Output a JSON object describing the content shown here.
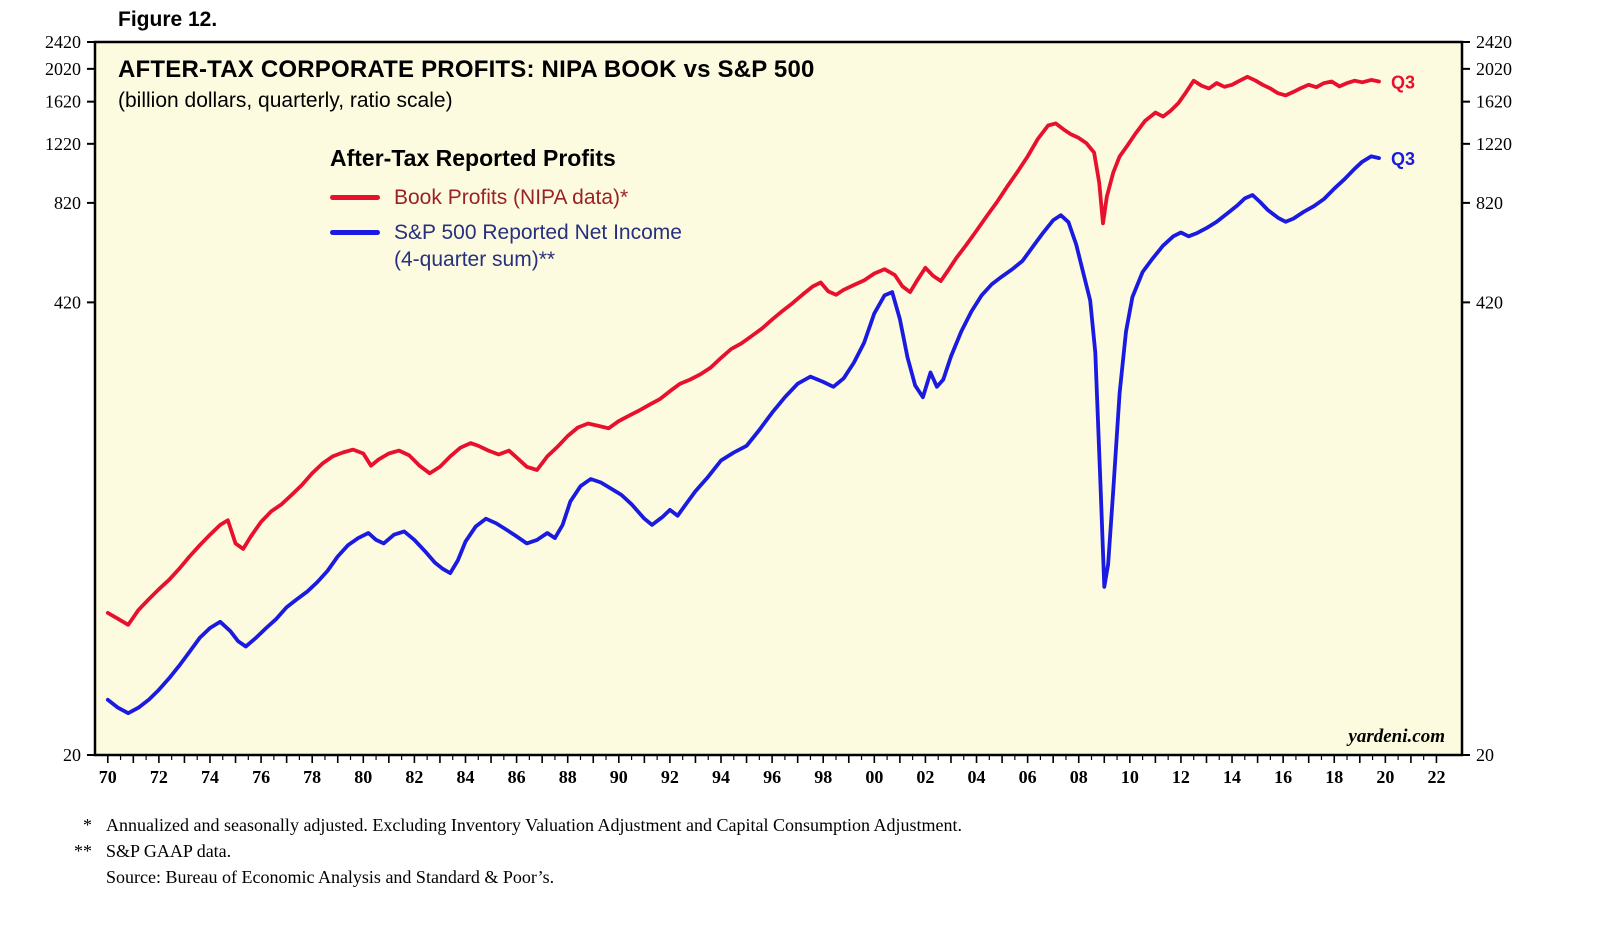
{
  "figure": {
    "label": "Figure 12."
  },
  "chart": {
    "title": "AFTER-TAX CORPORATE PROFITS: NIPA BOOK vs S&P 500",
    "subtitle": "(billion dollars, quarterly, ratio scale)",
    "legend": {
      "heading": "After-Tax Reported Profits",
      "items": [
        {
          "label": "Book Profits (NIPA data)*",
          "label2": "",
          "text_color": "#9a2227"
        },
        {
          "label": "S&P 500 Reported Net Income",
          "label2": "(4-quarter sum)**",
          "text_color": "#27307e"
        }
      ]
    },
    "end_labels": [
      {
        "text": "Q3",
        "series": "book-profits"
      },
      {
        "text": "Q3",
        "series": "sp500-net-income"
      }
    ],
    "watermark": "yardeni.com"
  },
  "footnotes": [
    {
      "marker": "*",
      "text": "Annualized and seasonally adjusted. Excluding Inventory Valuation Adjustment and Capital Consumption Adjustment."
    },
    {
      "marker": "**",
      "text": "S&P GAAP data."
    },
    {
      "marker": "",
      "text": "Source: Bureau of Economic Analysis and Standard & Poor’s."
    }
  ],
  "style": {
    "plot_bg": "#fdfbdf",
    "axis_color": "#000000"
  },
  "chart_data": {
    "type": "line",
    "title": "AFTER-TAX CORPORATE PROFITS: NIPA BOOK vs S&P 500",
    "subtitle": "(billion dollars, quarterly, ratio scale)",
    "x_axis": {
      "range": [
        1969.5,
        2023.0
      ],
      "tick_step_years": 1,
      "label_years_start": 1970,
      "label_every_years": 2,
      "tick_labels": [
        "70",
        "72",
        "74",
        "76",
        "78",
        "80",
        "82",
        "84",
        "86",
        "88",
        "90",
        "92",
        "94",
        "96",
        "98",
        "00",
        "02",
        "04",
        "06",
        "08",
        "10",
        "12",
        "14",
        "16",
        "18",
        "20",
        "22"
      ]
    },
    "y_axis": {
      "scale": "log",
      "range": [
        20,
        2420
      ],
      "ticks": [
        20,
        420,
        820,
        1220,
        1620,
        2020,
        2420
      ],
      "unit": "billion dollars"
    },
    "series": [
      {
        "id": "book-profits",
        "name": "Book Profits (NIPA data)",
        "color": "#e8112d",
        "last_point_label": "Q3 2019",
        "points": [
          [
            1970.0,
            52
          ],
          [
            1970.4,
            50
          ],
          [
            1970.8,
            48
          ],
          [
            1971.2,
            53
          ],
          [
            1971.6,
            57
          ],
          [
            1972.0,
            61
          ],
          [
            1972.4,
            65
          ],
          [
            1972.8,
            70
          ],
          [
            1973.2,
            76
          ],
          [
            1973.6,
            82
          ],
          [
            1974.0,
            88
          ],
          [
            1974.4,
            94
          ],
          [
            1974.7,
            97
          ],
          [
            1975.0,
            83
          ],
          [
            1975.3,
            80
          ],
          [
            1975.6,
            87
          ],
          [
            1976.0,
            96
          ],
          [
            1976.4,
            103
          ],
          [
            1976.8,
            108
          ],
          [
            1977.2,
            115
          ],
          [
            1977.6,
            123
          ],
          [
            1978.0,
            133
          ],
          [
            1978.4,
            142
          ],
          [
            1978.8,
            149
          ],
          [
            1979.2,
            153
          ],
          [
            1979.6,
            156
          ],
          [
            1980.0,
            152
          ],
          [
            1980.3,
            140
          ],
          [
            1980.6,
            146
          ],
          [
            1981.0,
            152
          ],
          [
            1981.4,
            155
          ],
          [
            1981.8,
            150
          ],
          [
            1982.2,
            140
          ],
          [
            1982.6,
            133
          ],
          [
            1983.0,
            139
          ],
          [
            1983.4,
            149
          ],
          [
            1983.8,
            158
          ],
          [
            1984.2,
            163
          ],
          [
            1984.5,
            160
          ],
          [
            1984.9,
            155
          ],
          [
            1985.3,
            151
          ],
          [
            1985.7,
            155
          ],
          [
            1986.0,
            148
          ],
          [
            1986.4,
            139
          ],
          [
            1986.8,
            136
          ],
          [
            1987.2,
            149
          ],
          [
            1987.6,
            159
          ],
          [
            1988.0,
            171
          ],
          [
            1988.4,
            181
          ],
          [
            1988.8,
            186
          ],
          [
            1989.2,
            183
          ],
          [
            1989.6,
            180
          ],
          [
            1990.0,
            189
          ],
          [
            1990.4,
            196
          ],
          [
            1990.8,
            203
          ],
          [
            1991.2,
            211
          ],
          [
            1991.6,
            219
          ],
          [
            1992.0,
            231
          ],
          [
            1992.4,
            243
          ],
          [
            1992.8,
            250
          ],
          [
            1993.2,
            259
          ],
          [
            1993.6,
            271
          ],
          [
            1994.0,
            289
          ],
          [
            1994.4,
            307
          ],
          [
            1994.8,
            319
          ],
          [
            1995.2,
            335
          ],
          [
            1995.6,
            352
          ],
          [
            1996.0,
            374
          ],
          [
            1996.4,
            396
          ],
          [
            1996.8,
            418
          ],
          [
            1997.2,
            443
          ],
          [
            1997.6,
            468
          ],
          [
            1997.9,
            480
          ],
          [
            1998.2,
            452
          ],
          [
            1998.5,
            442
          ],
          [
            1998.8,
            457
          ],
          [
            1999.2,
            472
          ],
          [
            1999.6,
            487
          ],
          [
            2000.0,
            510
          ],
          [
            2000.4,
            525
          ],
          [
            2000.8,
            505
          ],
          [
            2001.1,
            468
          ],
          [
            2001.4,
            450
          ],
          [
            2001.7,
            490
          ],
          [
            2002.0,
            530
          ],
          [
            2002.3,
            502
          ],
          [
            2002.6,
            485
          ],
          [
            2002.9,
            522
          ],
          [
            2003.2,
            565
          ],
          [
            2003.6,
            618
          ],
          [
            2004.0,
            680
          ],
          [
            2004.4,
            750
          ],
          [
            2004.8,
            825
          ],
          [
            2005.2,
            915
          ],
          [
            2005.6,
            1010
          ],
          [
            2006.0,
            1120
          ],
          [
            2006.4,
            1260
          ],
          [
            2006.8,
            1380
          ],
          [
            2007.1,
            1400
          ],
          [
            2007.4,
            1345
          ],
          [
            2007.7,
            1300
          ],
          [
            2008.0,
            1270
          ],
          [
            2008.3,
            1225
          ],
          [
            2008.6,
            1150
          ],
          [
            2008.8,
            940
          ],
          [
            2008.95,
            715
          ],
          [
            2009.1,
            855
          ],
          [
            2009.35,
            1005
          ],
          [
            2009.6,
            1120
          ],
          [
            2009.9,
            1205
          ],
          [
            2010.2,
            1300
          ],
          [
            2010.6,
            1425
          ],
          [
            2011.0,
            1505
          ],
          [
            2011.3,
            1465
          ],
          [
            2011.6,
            1525
          ],
          [
            2011.9,
            1605
          ],
          [
            2012.2,
            1725
          ],
          [
            2012.5,
            1865
          ],
          [
            2012.8,
            1805
          ],
          [
            2013.1,
            1770
          ],
          [
            2013.4,
            1835
          ],
          [
            2013.7,
            1790
          ],
          [
            2014.0,
            1815
          ],
          [
            2014.3,
            1865
          ],
          [
            2014.6,
            1915
          ],
          [
            2014.9,
            1870
          ],
          [
            2015.2,
            1815
          ],
          [
            2015.5,
            1770
          ],
          [
            2015.8,
            1715
          ],
          [
            2016.1,
            1690
          ],
          [
            2016.4,
            1730
          ],
          [
            2016.7,
            1775
          ],
          [
            2017.0,
            1815
          ],
          [
            2017.3,
            1785
          ],
          [
            2017.6,
            1835
          ],
          [
            2017.9,
            1855
          ],
          [
            2018.2,
            1795
          ],
          [
            2018.5,
            1835
          ],
          [
            2018.8,
            1865
          ],
          [
            2019.1,
            1845
          ],
          [
            2019.45,
            1875
          ],
          [
            2019.75,
            1855
          ]
        ]
      },
      {
        "id": "sp500-net-income",
        "name": "S&P 500 Reported Net Income (4-quarter sum)",
        "color": "#1a1ae0",
        "last_point_label": "Q3 2019",
        "points": [
          [
            1970.0,
            29
          ],
          [
            1970.4,
            27.5
          ],
          [
            1970.8,
            26.5
          ],
          [
            1971.2,
            27.5
          ],
          [
            1971.6,
            29
          ],
          [
            1972.0,
            31
          ],
          [
            1972.4,
            33.5
          ],
          [
            1972.8,
            36.5
          ],
          [
            1973.2,
            40
          ],
          [
            1973.6,
            44
          ],
          [
            1974.0,
            47
          ],
          [
            1974.4,
            49
          ],
          [
            1974.8,
            46
          ],
          [
            1975.1,
            43
          ],
          [
            1975.4,
            41.5
          ],
          [
            1975.8,
            44
          ],
          [
            1976.2,
            47
          ],
          [
            1976.6,
            50
          ],
          [
            1977.0,
            54
          ],
          [
            1977.4,
            57
          ],
          [
            1977.8,
            60
          ],
          [
            1978.2,
            64
          ],
          [
            1978.6,
            69
          ],
          [
            1979.0,
            76
          ],
          [
            1979.4,
            82
          ],
          [
            1979.8,
            86
          ],
          [
            1980.2,
            89
          ],
          [
            1980.5,
            85
          ],
          [
            1980.8,
            83
          ],
          [
            1981.2,
            88
          ],
          [
            1981.6,
            90
          ],
          [
            1982.0,
            85
          ],
          [
            1982.4,
            79
          ],
          [
            1982.8,
            73
          ],
          [
            1983.1,
            70
          ],
          [
            1983.4,
            68
          ],
          [
            1983.7,
            74
          ],
          [
            1984.0,
            84
          ],
          [
            1984.4,
            93
          ],
          [
            1984.8,
            98
          ],
          [
            1985.2,
            95
          ],
          [
            1985.6,
            91
          ],
          [
            1986.0,
            87
          ],
          [
            1986.4,
            83
          ],
          [
            1986.8,
            85
          ],
          [
            1987.2,
            89
          ],
          [
            1987.5,
            86
          ],
          [
            1987.8,
            94
          ],
          [
            1988.1,
            110
          ],
          [
            1988.5,
            122
          ],
          [
            1988.9,
            128
          ],
          [
            1989.3,
            125
          ],
          [
            1989.7,
            120
          ],
          [
            1990.1,
            115
          ],
          [
            1990.5,
            108
          ],
          [
            1991.0,
            98
          ],
          [
            1991.3,
            94
          ],
          [
            1991.7,
            99
          ],
          [
            1992.0,
            104
          ],
          [
            1992.3,
            100
          ],
          [
            1992.7,
            110
          ],
          [
            1993.0,
            118
          ],
          [
            1993.5,
            130
          ],
          [
            1994.0,
            145
          ],
          [
            1994.5,
            153
          ],
          [
            1995.0,
            160
          ],
          [
            1995.5,
            178
          ],
          [
            1996.0,
            200
          ],
          [
            1996.5,
            222
          ],
          [
            1997.0,
            243
          ],
          [
            1997.5,
            255
          ],
          [
            1998.0,
            246
          ],
          [
            1998.4,
            238
          ],
          [
            1998.8,
            252
          ],
          [
            1999.2,
            280
          ],
          [
            1999.6,
            320
          ],
          [
            2000.0,
            390
          ],
          [
            2000.4,
            440
          ],
          [
            2000.7,
            450
          ],
          [
            2001.0,
            375
          ],
          [
            2001.3,
            290
          ],
          [
            2001.6,
            240
          ],
          [
            2001.9,
            222
          ],
          [
            2002.2,
            262
          ],
          [
            2002.45,
            238
          ],
          [
            2002.7,
            250
          ],
          [
            2003.0,
            292
          ],
          [
            2003.4,
            345
          ],
          [
            2003.8,
            395
          ],
          [
            2004.2,
            440
          ],
          [
            2004.6,
            475
          ],
          [
            2005.0,
            500
          ],
          [
            2005.4,
            525
          ],
          [
            2005.8,
            555
          ],
          [
            2006.2,
            610
          ],
          [
            2006.6,
            670
          ],
          [
            2007.0,
            730
          ],
          [
            2007.3,
            755
          ],
          [
            2007.6,
            720
          ],
          [
            2007.9,
            620
          ],
          [
            2008.2,
            505
          ],
          [
            2008.45,
            425
          ],
          [
            2008.65,
            300
          ],
          [
            2008.85,
            125
          ],
          [
            2009.0,
            62
          ],
          [
            2009.15,
            72
          ],
          [
            2009.35,
            118
          ],
          [
            2009.6,
            228
          ],
          [
            2009.85,
            345
          ],
          [
            2010.1,
            435
          ],
          [
            2010.5,
            515
          ],
          [
            2010.9,
            565
          ],
          [
            2011.3,
            615
          ],
          [
            2011.7,
            655
          ],
          [
            2012.0,
            672
          ],
          [
            2012.3,
            655
          ],
          [
            2012.6,
            668
          ],
          [
            2013.0,
            692
          ],
          [
            2013.4,
            722
          ],
          [
            2013.8,
            762
          ],
          [
            2014.2,
            805
          ],
          [
            2014.5,
            845
          ],
          [
            2014.8,
            865
          ],
          [
            2015.1,
            825
          ],
          [
            2015.4,
            782
          ],
          [
            2015.8,
            742
          ],
          [
            2016.1,
            722
          ],
          [
            2016.4,
            738
          ],
          [
            2016.8,
            772
          ],
          [
            2017.2,
            802
          ],
          [
            2017.6,
            842
          ],
          [
            2018.0,
            902
          ],
          [
            2018.4,
            962
          ],
          [
            2018.8,
            1032
          ],
          [
            2019.1,
            1082
          ],
          [
            2019.45,
            1122
          ],
          [
            2019.75,
            1108
          ]
        ]
      }
    ]
  }
}
